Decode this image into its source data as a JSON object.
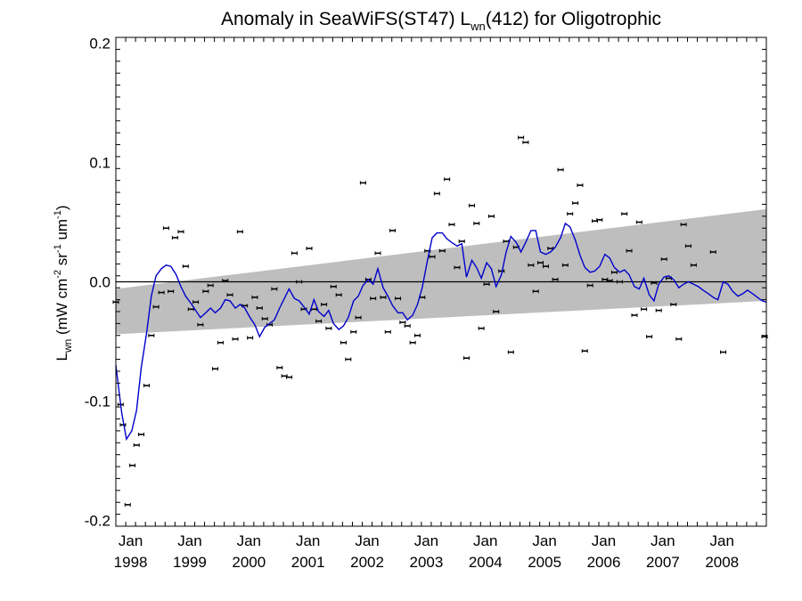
{
  "chart_data": {
    "type": "scatter",
    "title": {
      "prefix": "Anomaly in SeaWiFS(ST47) L",
      "subscript": "wn",
      "suffix": "(412) for Oligotrophic"
    },
    "ylabel": {
      "L": "L",
      "L_sub": "wn",
      "unit_a": " (mW cm",
      "unit_a_sup": "-2",
      "unit_b": " sr",
      "unit_b_sup": "-1",
      "unit_c": " um",
      "unit_c_sup": "-1",
      "unit_end": ")"
    },
    "xlim": [
      1997.75,
      2008.75
    ],
    "ylim": [
      -0.205,
      0.205
    ],
    "y_ticks": [
      -0.2,
      -0.1,
      0.0,
      0.1,
      0.2
    ],
    "y_tick_labels": [
      "-0.2",
      "-0.1",
      "0.0",
      "0.1",
      "0.2"
    ],
    "x_ticks": [
      {
        "x": 1998,
        "month": "Jan",
        "year": "1998"
      },
      {
        "x": 1999,
        "month": "Jan",
        "year": "1999"
      },
      {
        "x": 2000,
        "month": "Jan",
        "year": "2000"
      },
      {
        "x": 2001,
        "month": "Jan",
        "year": "2001"
      },
      {
        "x": 2002,
        "month": "Jan",
        "year": "2002"
      },
      {
        "x": 2003,
        "month": "Jan",
        "year": "2003"
      },
      {
        "x": 2004,
        "month": "Jan",
        "year": "2004"
      },
      {
        "x": 2005,
        "month": "Jan",
        "year": "2005"
      },
      {
        "x": 2006,
        "month": "Jan",
        "year": "2006"
      },
      {
        "x": 2007,
        "month": "Jan",
        "year": "2007"
      },
      {
        "x": 2008,
        "month": "Jan",
        "year": "2008"
      }
    ],
    "zero_line": 0.0,
    "band": {
      "color": "#bebebe",
      "upper_start": -0.006,
      "upper_end": 0.061,
      "lower_start": -0.044,
      "lower_end": -0.016
    },
    "series": [
      {
        "type": "points",
        "color": "#000000",
        "points": [
          [
            1997.75,
            -0.017
          ],
          [
            1997.83,
            -0.103
          ],
          [
            1997.87,
            -0.12
          ],
          [
            1997.95,
            -0.187
          ],
          [
            1998.03,
            -0.154
          ],
          [
            1998.1,
            -0.137
          ],
          [
            1998.18,
            -0.128
          ],
          [
            1998.27,
            -0.087
          ],
          [
            1998.35,
            -0.045
          ],
          [
            1998.43,
            -0.021
          ],
          [
            1998.52,
            -0.009
          ],
          [
            1998.6,
            0.045
          ],
          [
            1998.68,
            -0.008
          ],
          [
            1998.75,
            0.037
          ],
          [
            1998.85,
            0.042
          ],
          [
            1998.93,
            0.013
          ],
          [
            1999.02,
            -0.023
          ],
          [
            1999.1,
            -0.017
          ],
          [
            1999.18,
            -0.036
          ],
          [
            1999.27,
            -0.008
          ],
          [
            1999.35,
            -0.003
          ],
          [
            1999.43,
            -0.073
          ],
          [
            1999.52,
            -0.051
          ],
          [
            1999.6,
            0.001
          ],
          [
            1999.68,
            -0.011
          ],
          [
            1999.77,
            -0.048
          ],
          [
            1999.85,
            0.042
          ],
          [
            1999.93,
            -0.02
          ],
          [
            2000.02,
            -0.047
          ],
          [
            2000.1,
            -0.013
          ],
          [
            2000.18,
            -0.022
          ],
          [
            2000.27,
            -0.031
          ],
          [
            2000.35,
            -0.036
          ],
          [
            2000.43,
            -0.006
          ],
          [
            2000.52,
            -0.072
          ],
          [
            2000.6,
            -0.079
          ],
          [
            2000.68,
            -0.08
          ],
          [
            2000.77,
            0.024
          ],
          [
            2000.85,
            0.0
          ],
          [
            2000.93,
            -0.023
          ],
          [
            2001.02,
            0.028
          ],
          [
            2001.1,
            -0.023
          ],
          [
            2001.18,
            -0.033
          ],
          [
            2001.27,
            -0.019
          ],
          [
            2001.35,
            -0.039
          ],
          [
            2001.43,
            -0.004
          ],
          [
            2001.52,
            -0.011
          ],
          [
            2001.6,
            -0.051
          ],
          [
            2001.68,
            -0.065
          ],
          [
            2001.77,
            -0.042
          ],
          [
            2001.85,
            -0.03
          ],
          [
            2001.93,
            0.083
          ],
          [
            2002.02,
            0.002
          ],
          [
            2002.1,
            -0.014
          ],
          [
            2002.18,
            0.024
          ],
          [
            2002.27,
            -0.013
          ],
          [
            2002.35,
            -0.042
          ],
          [
            2002.43,
            0.043
          ],
          [
            2002.52,
            -0.014
          ],
          [
            2002.6,
            -0.034
          ],
          [
            2002.68,
            -0.037
          ],
          [
            2002.77,
            -0.051
          ],
          [
            2002.85,
            -0.045
          ],
          [
            2002.93,
            -0.013
          ],
          [
            2003.02,
            0.026
          ],
          [
            2003.1,
            0.021
          ],
          [
            2003.18,
            0.074
          ],
          [
            2003.27,
            0.026
          ],
          [
            2003.35,
            0.086
          ],
          [
            2003.43,
            0.048
          ],
          [
            2003.52,
            0.012
          ],
          [
            2003.6,
            0.034
          ],
          [
            2003.68,
            -0.064
          ],
          [
            2003.77,
            0.064
          ],
          [
            2003.85,
            0.049
          ],
          [
            2003.93,
            -0.039
          ],
          [
            2004.02,
            -0.002
          ],
          [
            2004.1,
            0.055
          ],
          [
            2004.18,
            -0.025
          ],
          [
            2004.27,
            0.009
          ],
          [
            2004.35,
            0.034
          ],
          [
            2004.43,
            -0.059
          ],
          [
            2004.52,
            0.029
          ],
          [
            2004.6,
            0.121
          ],
          [
            2004.68,
            0.117
          ],
          [
            2004.77,
            0.014
          ],
          [
            2004.85,
            -0.008
          ],
          [
            2004.93,
            0.016
          ],
          [
            2005.02,
            0.013
          ],
          [
            2005.1,
            0.028
          ],
          [
            2005.18,
            0.002
          ],
          [
            2005.27,
            0.094
          ],
          [
            2005.35,
            0.014
          ],
          [
            2005.43,
            0.057
          ],
          [
            2005.52,
            0.066
          ],
          [
            2005.6,
            0.081
          ],
          [
            2005.68,
            -0.058
          ],
          [
            2005.77,
            -0.003
          ],
          [
            2005.85,
            0.051
          ],
          [
            2005.93,
            0.052
          ],
          [
            2006.02,
            0.002
          ],
          [
            2006.1,
            0.001
          ],
          [
            2006.18,
            0.008
          ],
          [
            2006.27,
            0.0
          ],
          [
            2006.35,
            0.057
          ],
          [
            2006.43,
            0.026
          ],
          [
            2006.52,
            -0.028
          ],
          [
            2006.6,
            0.05
          ],
          [
            2006.68,
            -0.023
          ],
          [
            2006.77,
            -0.046
          ],
          [
            2006.85,
            -0.001
          ],
          [
            2006.93,
            -0.024
          ],
          [
            2007.02,
            0.019
          ],
          [
            2007.1,
            0.003
          ],
          [
            2007.18,
            -0.019
          ],
          [
            2007.27,
            -0.048
          ],
          [
            2007.35,
            0.048
          ],
          [
            2007.43,
            0.03
          ],
          [
            2007.52,
            0.014
          ],
          [
            2007.85,
            0.025
          ],
          [
            2008.02,
            -0.059
          ],
          [
            2008.72,
            -0.046
          ]
        ]
      },
      {
        "type": "line",
        "color": "#0000cc",
        "points": [
          [
            1997.75,
            -0.07
          ],
          [
            1997.85,
            -0.11
          ],
          [
            1997.93,
            -0.132
          ],
          [
            1998.02,
            -0.125
          ],
          [
            1998.1,
            -0.108
          ],
          [
            1998.18,
            -0.072
          ],
          [
            1998.27,
            -0.043
          ],
          [
            1998.35,
            -0.012
          ],
          [
            1998.43,
            0.005
          ],
          [
            1998.52,
            0.011
          ],
          [
            1998.6,
            0.014
          ],
          [
            1998.68,
            0.013
          ],
          [
            1998.77,
            0.006
          ],
          [
            1998.85,
            -0.004
          ],
          [
            1998.93,
            -0.012
          ],
          [
            1999.02,
            -0.018
          ],
          [
            1999.1,
            -0.024
          ],
          [
            1999.18,
            -0.03
          ],
          [
            1999.27,
            -0.026
          ],
          [
            1999.35,
            -0.022
          ],
          [
            1999.43,
            -0.026
          ],
          [
            1999.52,
            -0.022
          ],
          [
            1999.6,
            -0.015
          ],
          [
            1999.68,
            -0.016
          ],
          [
            1999.77,
            -0.022
          ],
          [
            1999.85,
            -0.019
          ],
          [
            1999.93,
            -0.022
          ],
          [
            2000.02,
            -0.03
          ],
          [
            2000.1,
            -0.036
          ],
          [
            2000.18,
            -0.046
          ],
          [
            2000.27,
            -0.038
          ],
          [
            2000.35,
            -0.035
          ],
          [
            2000.43,
            -0.032
          ],
          [
            2000.52,
            -0.022
          ],
          [
            2000.6,
            -0.014
          ],
          [
            2000.68,
            -0.006
          ],
          [
            2000.77,
            -0.014
          ],
          [
            2000.85,
            -0.016
          ],
          [
            2000.93,
            -0.021
          ],
          [
            2001.02,
            -0.027
          ],
          [
            2001.1,
            -0.015
          ],
          [
            2001.18,
            -0.025
          ],
          [
            2001.27,
            -0.029
          ],
          [
            2001.35,
            -0.024
          ],
          [
            2001.43,
            -0.035
          ],
          [
            2001.52,
            -0.04
          ],
          [
            2001.6,
            -0.037
          ],
          [
            2001.68,
            -0.03
          ],
          [
            2001.77,
            -0.016
          ],
          [
            2001.85,
            -0.012
          ],
          [
            2001.93,
            -0.003
          ],
          [
            2002.02,
            0.002
          ],
          [
            2002.1,
            -0.002
          ],
          [
            2002.18,
            0.011
          ],
          [
            2002.27,
            -0.005
          ],
          [
            2002.35,
            -0.012
          ],
          [
            2002.43,
            -0.02
          ],
          [
            2002.52,
            -0.026
          ],
          [
            2002.6,
            -0.026
          ],
          [
            2002.68,
            -0.032
          ],
          [
            2002.77,
            -0.028
          ],
          [
            2002.85,
            -0.019
          ],
          [
            2002.93,
            -0.005
          ],
          [
            2003.02,
            0.018
          ],
          [
            2003.1,
            0.037
          ],
          [
            2003.18,
            0.041
          ],
          [
            2003.27,
            0.041
          ],
          [
            2003.35,
            0.036
          ],
          [
            2003.43,
            0.033
          ],
          [
            2003.52,
            0.03
          ],
          [
            2003.6,
            0.032
          ],
          [
            2003.68,
            0.004
          ],
          [
            2003.77,
            0.018
          ],
          [
            2003.85,
            0.012
          ],
          [
            2003.93,
            0.003
          ],
          [
            2004.02,
            0.016
          ],
          [
            2004.1,
            0.011
          ],
          [
            2004.18,
            -0.004
          ],
          [
            2004.27,
            0.006
          ],
          [
            2004.35,
            0.025
          ],
          [
            2004.43,
            0.038
          ],
          [
            2004.52,
            0.033
          ],
          [
            2004.6,
            0.025
          ],
          [
            2004.68,
            0.033
          ],
          [
            2004.77,
            0.043
          ],
          [
            2004.85,
            0.043
          ],
          [
            2004.93,
            0.025
          ],
          [
            2005.02,
            0.023
          ],
          [
            2005.1,
            0.025
          ],
          [
            2005.18,
            0.029
          ],
          [
            2005.27,
            0.037
          ],
          [
            2005.35,
            0.049
          ],
          [
            2005.43,
            0.046
          ],
          [
            2005.52,
            0.035
          ],
          [
            2005.6,
            0.022
          ],
          [
            2005.68,
            0.012
          ],
          [
            2005.77,
            0.008
          ],
          [
            2005.85,
            0.009
          ],
          [
            2005.93,
            0.013
          ],
          [
            2006.02,
            0.023
          ],
          [
            2006.1,
            0.02
          ],
          [
            2006.18,
            0.012
          ],
          [
            2006.27,
            0.008
          ],
          [
            2006.35,
            0.01
          ],
          [
            2006.43,
            0.006
          ],
          [
            2006.52,
            -0.004
          ],
          [
            2006.6,
            -0.006
          ],
          [
            2006.68,
            0.003
          ],
          [
            2006.77,
            -0.011
          ],
          [
            2006.85,
            -0.016
          ],
          [
            2006.93,
            -0.002
          ],
          [
            2007.02,
            0.004
          ],
          [
            2007.1,
            0.005
          ],
          [
            2007.18,
            0.002
          ],
          [
            2007.27,
            -0.005
          ],
          [
            2007.35,
            -0.002
          ],
          [
            2007.43,
            0.0
          ],
          [
            2007.52,
            -0.002
          ],
          [
            2007.6,
            -0.004
          ],
          [
            2007.68,
            -0.007
          ],
          [
            2007.77,
            -0.01
          ],
          [
            2007.85,
            -0.013
          ],
          [
            2007.93,
            -0.015
          ],
          [
            2008.02,
            0.0
          ],
          [
            2008.1,
            -0.002
          ],
          [
            2008.18,
            -0.008
          ],
          [
            2008.27,
            -0.012
          ],
          [
            2008.35,
            -0.01
          ],
          [
            2008.43,
            -0.007
          ],
          [
            2008.52,
            -0.01
          ],
          [
            2008.6,
            -0.013
          ],
          [
            2008.68,
            -0.016
          ],
          [
            2008.75,
            -0.017
          ]
        ]
      }
    ]
  }
}
